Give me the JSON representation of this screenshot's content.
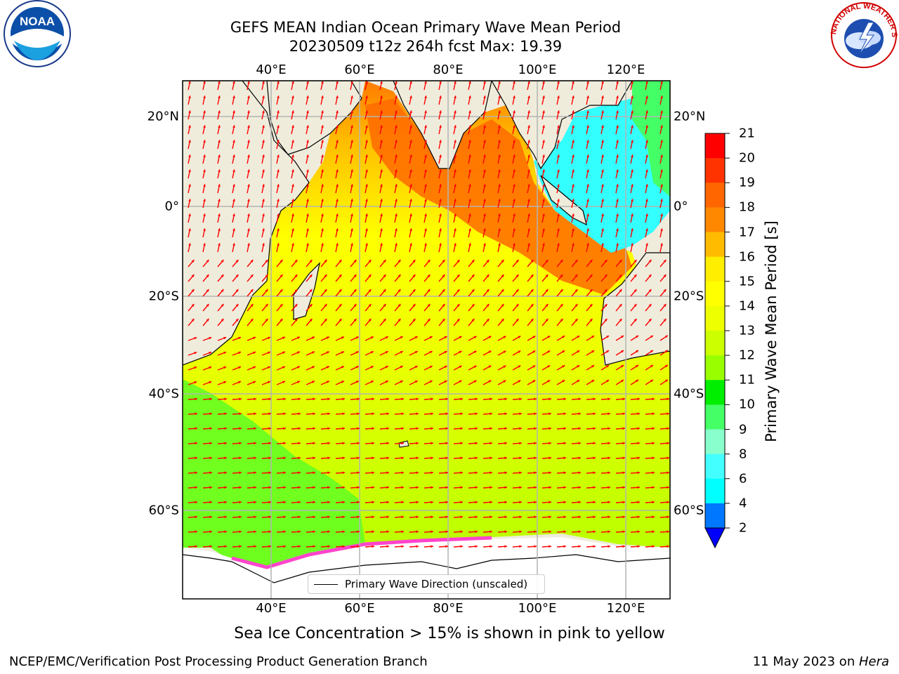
{
  "title": {
    "line1": "GEFS MEAN Indian Ocean Primary Wave Mean Period",
    "line2": "20230509 t12z 264h fcst   Max: 19.39"
  },
  "axes": {
    "lon_ticks": [
      "40°E",
      "60°E",
      "80°E",
      "100°E",
      "120°E"
    ],
    "lat_ticks": [
      "20°N",
      "0°",
      "20°S",
      "40°S",
      "60°S"
    ]
  },
  "colorbar": {
    "label": "Primary Wave Mean Period [s]",
    "ticks": [
      "21",
      "20",
      "19",
      "18",
      "17",
      "16",
      "15",
      "14",
      "13",
      "12",
      "11",
      "10",
      "9",
      "8",
      "6",
      "4",
      "2"
    ],
    "colors": [
      "#ff0000",
      "#ff3300",
      "#ff6600",
      "#ff8800",
      "#ffbb00",
      "#ffee00",
      "#ffff00",
      "#eeff00",
      "#ccff00",
      "#99ff00",
      "#00ee00",
      "#44ff66",
      "#88ffcc",
      "#44ffff",
      "#00ffff",
      "#0077ff",
      "#0000ff"
    ]
  },
  "legend": {
    "label": "Primary Wave Direction (unscaled)"
  },
  "caption": "Sea Ice Concentration > 15% is shown in pink to yellow",
  "footer": {
    "left": "NCEP/EMC/Verification Post Processing Product Generation Branch",
    "date": "11 May 2023 on ",
    "host": "Hera"
  },
  "logos": {
    "left": "NOAA",
    "right": "NATIONAL WEATHER SERVICE"
  }
}
